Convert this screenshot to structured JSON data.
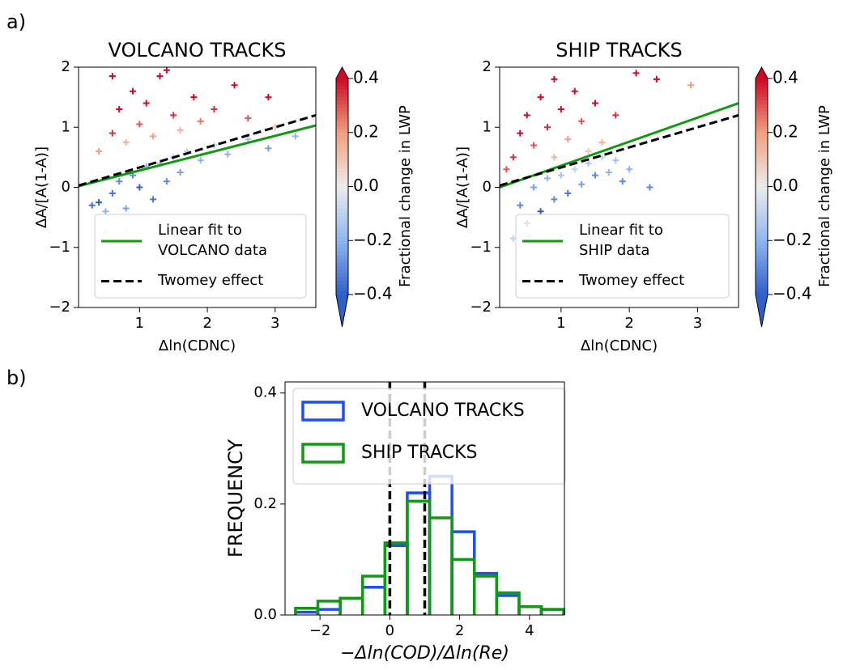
{
  "panel_labels": [
    "a)",
    "b)"
  ],
  "chart_data": [
    {
      "type": "scatter",
      "title": "VOLCANO TRACKS",
      "xlabel": "Δln(CDNC)",
      "ylabel": "ΔA/[A(1-A)]",
      "xlim": [
        0.1,
        3.6
      ],
      "ylim": [
        -2,
        2
      ],
      "xticks": [
        1,
        2,
        3
      ],
      "yticks": [
        {
          "value": -2,
          "label": "−2"
        },
        {
          "value": -1,
          "label": "−1"
        },
        0,
        1,
        2
      ],
      "points": {
        "x": [
          0.3,
          0.4,
          0.5,
          0.6,
          0.7,
          0.8,
          0.9,
          1.0,
          1.1,
          1.2,
          1.3,
          1.4,
          1.5,
          1.6,
          1.7,
          1.9,
          2.1,
          2.3,
          2.6,
          2.9,
          3.3,
          0.5,
          0.8,
          0.4,
          0.6,
          0.7,
          0.8,
          0.9,
          1.0,
          1.1,
          1.2,
          1.3,
          1.5,
          1.6,
          1.8,
          1.9,
          2.1,
          2.4,
          2.6,
          2.9,
          3.0,
          0.6,
          1.4
        ],
        "y": [
          -0.3,
          -0.25,
          -0.4,
          -0.1,
          0.1,
          -0.35,
          0.2,
          0.0,
          0.35,
          -0.2,
          0.4,
          0.1,
          0.5,
          0.25,
          0.6,
          0.45,
          0.7,
          0.55,
          0.8,
          0.65,
          0.85,
          -0.75,
          -0.7,
          0.6,
          0.9,
          1.3,
          0.75,
          1.6,
          1.05,
          1.4,
          0.85,
          1.85,
          1.2,
          0.95,
          1.5,
          1.1,
          1.3,
          1.7,
          1.15,
          1.5,
          1.0,
          1.85,
          1.95
        ],
        "c": [
          -0.35,
          -0.4,
          -0.2,
          -0.35,
          -0.3,
          -0.25,
          -0.3,
          -0.4,
          -0.2,
          -0.35,
          -0.15,
          -0.3,
          -0.1,
          -0.25,
          -0.1,
          -0.2,
          -0.1,
          -0.2,
          -0.15,
          -0.25,
          -0.2,
          -0.05,
          -0.02,
          0.2,
          0.35,
          0.4,
          0.15,
          0.4,
          0.3,
          0.4,
          0.2,
          0.4,
          0.35,
          0.15,
          0.4,
          0.25,
          0.35,
          0.4,
          0.3,
          0.4,
          0.1,
          0.4,
          0.4
        ]
      },
      "lines": [
        {
          "name": [
            "Linear fit to",
            "VOLCANO data"
          ],
          "color": "#119911",
          "dashed": false,
          "x": [
            0.1,
            3.6
          ],
          "y": [
            0.02,
            1.03
          ]
        },
        {
          "name": [
            "Twomey effect"
          ],
          "color": "#000000",
          "dashed": true,
          "x": [
            0.1,
            3.6
          ],
          "y": [
            0.03,
            1.2
          ]
        }
      ],
      "colorbar": {
        "label": "Fractional change in LWP",
        "lim": [
          -0.4,
          0.4
        ],
        "ticks": [
          {
            "value": -0.4,
            "label": "−0.4"
          },
          {
            "value": -0.2,
            "label": "−0.2"
          },
          {
            "value": 0.0,
            "label": "0.0"
          },
          {
            "value": 0.2,
            "label": "0.2"
          },
          0.4
        ]
      },
      "colormap": [
        "#2f5fc9",
        "#8fb5f0",
        "#ececec",
        "#f2a080",
        "#cc0a26"
      ]
    },
    {
      "type": "scatter",
      "title": "SHIP TRACKS",
      "xlabel": "Δln(CDNC)",
      "ylabel": "ΔA/[A(1-A)]",
      "xlim": [
        0.1,
        3.6
      ],
      "ylim": [
        -2,
        2
      ],
      "xticks": [
        1,
        2,
        3
      ],
      "yticks": [
        {
          "value": -2,
          "label": "−2"
        },
        {
          "value": -1,
          "label": "−1"
        },
        0,
        1,
        2
      ],
      "points": {
        "x": [
          0.4,
          0.5,
          0.6,
          0.7,
          0.8,
          0.9,
          1.0,
          1.1,
          1.2,
          1.3,
          1.4,
          1.5,
          1.6,
          1.7,
          1.8,
          1.9,
          2.0,
          2.3,
          0.5,
          0.3,
          0.2,
          0.3,
          0.4,
          0.5,
          0.6,
          0.7,
          0.8,
          0.9,
          1.0,
          1.1,
          1.2,
          1.3,
          1.5,
          1.6,
          1.8,
          2.1,
          2.4,
          2.9,
          1.4,
          0.9
        ],
        "y": [
          -0.3,
          -0.6,
          0.0,
          -0.4,
          0.15,
          -0.2,
          0.2,
          -0.1,
          0.3,
          0.05,
          0.4,
          0.2,
          0.5,
          0.25,
          0.45,
          0.1,
          0.3,
          0.0,
          -0.9,
          -0.85,
          0.3,
          0.5,
          0.9,
          1.2,
          0.7,
          1.5,
          1.0,
          1.8,
          1.3,
          0.8,
          1.6,
          1.1,
          1.4,
          0.75,
          1.2,
          1.9,
          1.8,
          1.7,
          0.6,
          0.5
        ],
        "c": [
          -0.3,
          -0.35,
          -0.25,
          -0.4,
          -0.2,
          -0.3,
          -0.15,
          -0.35,
          -0.1,
          -0.25,
          -0.15,
          -0.3,
          -0.1,
          -0.2,
          -0.15,
          -0.3,
          -0.2,
          -0.3,
          -0.05,
          -0.1,
          0.3,
          0.35,
          0.4,
          0.4,
          0.3,
          0.4,
          0.35,
          0.4,
          0.4,
          0.2,
          0.4,
          0.3,
          0.4,
          0.15,
          0.35,
          0.4,
          0.4,
          0.2,
          0.1,
          0.15
        ]
      },
      "lines": [
        {
          "name": [
            "Linear fit to",
            "SHIP data"
          ],
          "color": "#119911",
          "dashed": false,
          "x": [
            0.1,
            3.6
          ],
          "y": [
            0.0,
            1.4
          ]
        },
        {
          "name": [
            "Twomey effect"
          ],
          "color": "#000000",
          "dashed": true,
          "x": [
            0.1,
            3.6
          ],
          "y": [
            0.03,
            1.2
          ]
        }
      ],
      "colorbar": {
        "label": "Fractional change in LWP",
        "lim": [
          -0.4,
          0.4
        ],
        "ticks": [
          {
            "value": -0.4,
            "label": "−0.4"
          },
          {
            "value": -0.2,
            "label": "−0.2"
          },
          {
            "value": 0.0,
            "label": "0.0"
          },
          {
            "value": 0.2,
            "label": "0.2"
          },
          0.4
        ]
      },
      "colormap": [
        "#2f5fc9",
        "#8fb5f0",
        "#ececec",
        "#f2a080",
        "#cc0a26"
      ]
    },
    {
      "type": "histogram",
      "xlabel": "−Δln(COD)/Δln(Re)",
      "ylabel": "FREQUENCY",
      "xlim": [
        -3,
        5
      ],
      "ylim": [
        0,
        0.42
      ],
      "xticks": [
        {
          "value": -2,
          "label": "−2"
        },
        0,
        2,
        4
      ],
      "yticks": [
        {
          "value": 0,
          "label": "0.0"
        },
        0.2,
        0.4
      ],
      "bins": [
        -2.7,
        -2.06,
        -1.42,
        -0.78,
        -0.14,
        0.5,
        1.14,
        1.78,
        2.42,
        3.06,
        3.7,
        4.34,
        4.98
      ],
      "series": [
        {
          "name": "VOLCANO TRACKS",
          "color": "#1f4ff0",
          "values": [
            0.005,
            0.01,
            0.03,
            0.05,
            0.125,
            0.22,
            0.25,
            0.15,
            0.075,
            0.035,
            0.015,
            0.01
          ]
        },
        {
          "name": "SHIP TRACKS",
          "color": "#119911",
          "values": [
            0.012,
            0.025,
            0.03,
            0.07,
            0.13,
            0.205,
            0.175,
            0.1,
            0.07,
            0.04,
            0.015,
            0.01
          ]
        }
      ],
      "vlines": [
        0,
        1
      ]
    }
  ]
}
